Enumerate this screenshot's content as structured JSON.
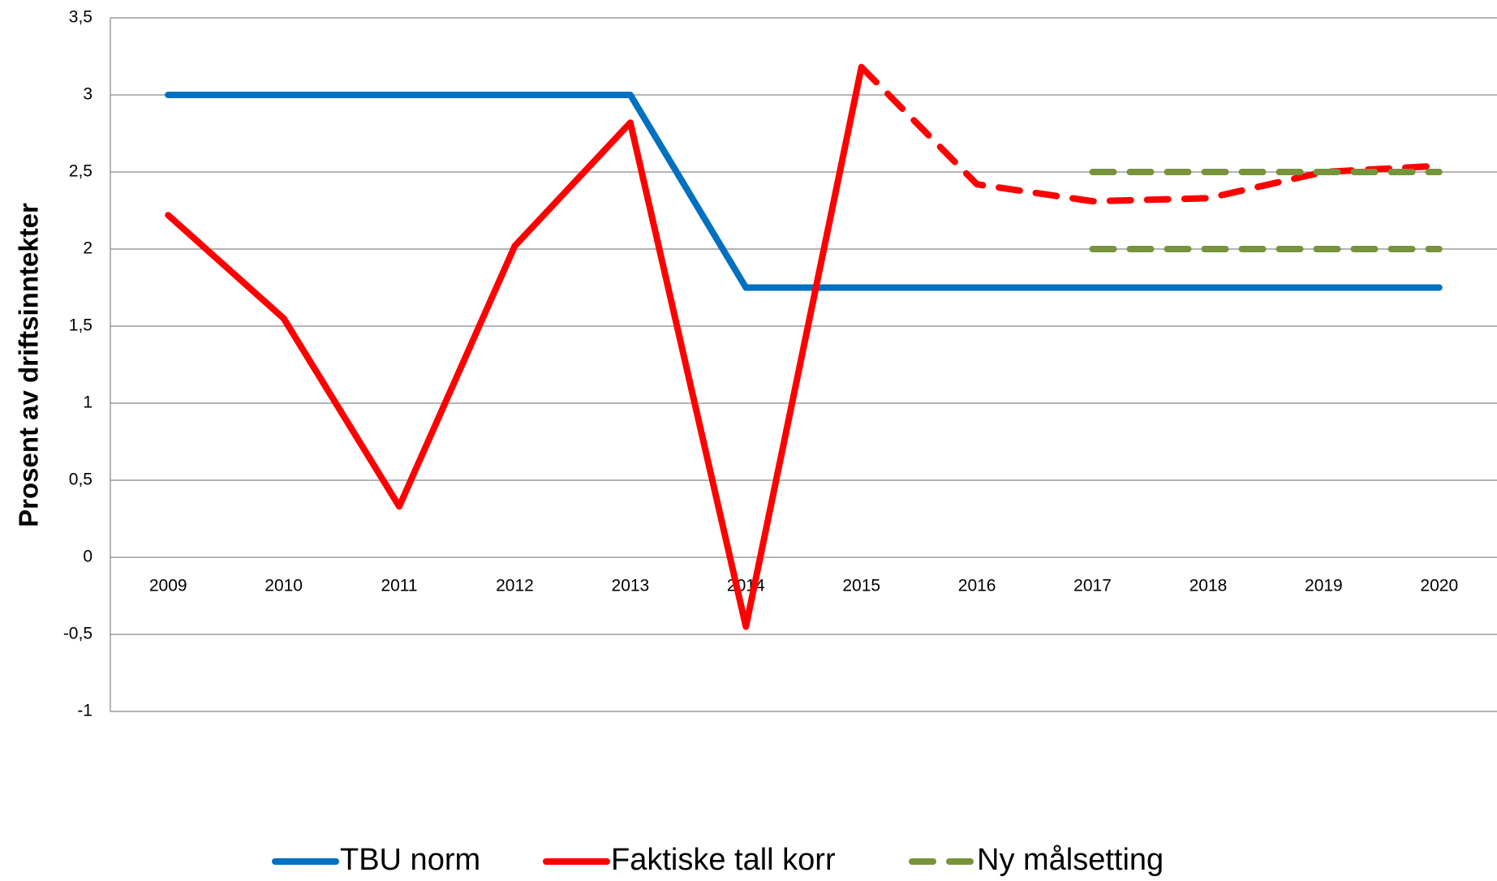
{
  "chart_data": {
    "type": "line",
    "ylabel": "Prosent av driftsinntekter",
    "categories": [
      "2009",
      "2010",
      "2011",
      "2012",
      "2013",
      "2014",
      "2015",
      "2016",
      "2017",
      "2018",
      "2019",
      "2020"
    ],
    "series": [
      {
        "name": "TBU norm",
        "color": "#0070c0",
        "values": [
          3,
          3,
          3,
          3,
          3,
          1.75,
          1.75,
          1.75,
          1.75,
          1.75,
          1.75,
          1.75
        ]
      },
      {
        "name": "Faktiske tall korr",
        "color": "#ff0000",
        "dash_from": 6,
        "values": [
          2.22,
          1.55,
          0.33,
          2.02,
          2.82,
          -0.45,
          3.18,
          2.42,
          2.31,
          2.33,
          2.5,
          2.54
        ]
      },
      {
        "name": "Ny målsetting",
        "color": "#77933c",
        "dashed": true,
        "values": [
          null,
          null,
          null,
          null,
          null,
          null,
          null,
          null,
          2.5,
          2.5,
          2.5,
          2.5
        ]
      },
      {
        "color": "#77933c",
        "dashed": true,
        "values": [
          null,
          null,
          null,
          null,
          null,
          null,
          null,
          null,
          2,
          2,
          2,
          2
        ]
      }
    ],
    "ylim": [
      -1,
      3.5
    ],
    "yticks": [
      -1,
      {
        "value": -0.5,
        "label": "-0,5"
      },
      0,
      {
        "value": 0.5,
        "label": "0,5"
      },
      1,
      {
        "value": 1.5,
        "label": "1,5"
      },
      2,
      {
        "value": 2.5,
        "label": "2,5"
      },
      3,
      {
        "value": 3.5,
        "label": "3,5"
      }
    ],
    "grid": true,
    "legend": "bottom"
  }
}
